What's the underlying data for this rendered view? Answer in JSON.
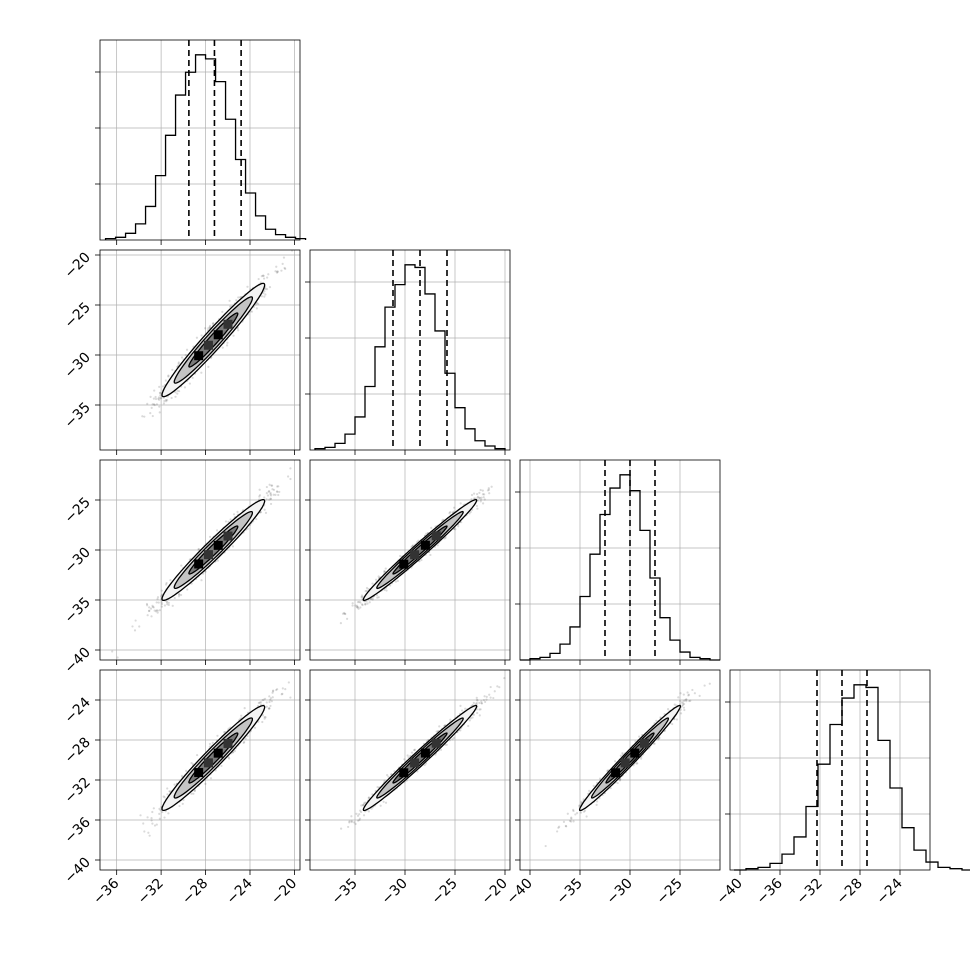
{
  "chart_data": {
    "type": "corner",
    "n_params": 4,
    "colors": {
      "line": "#000000",
      "grid": "#b0b0b0",
      "scatter": "#555555"
    },
    "parameters": [
      {
        "index": 0,
        "range": [
          -37.5,
          -19.5
        ],
        "ticks": [
          -36,
          -32,
          -28,
          -24,
          -20
        ],
        "tick_labels": [
          "−36",
          "−32",
          "−28",
          "−24",
          "−20"
        ]
      },
      {
        "index": 1,
        "range": [
          -39.5,
          -19.5
        ],
        "ticks": [
          -35,
          -30,
          -25,
          -20
        ],
        "tick_labels": [
          "−35",
          "−30",
          "−25",
          "−20"
        ]
      },
      {
        "index": 2,
        "range": [
          -41.0,
          -21.0
        ],
        "ticks": [
          -40,
          -35,
          -30,
          -25
        ],
        "tick_labels": [
          "−40",
          "−35",
          "−30",
          "−25"
        ]
      },
      {
        "index": 3,
        "range": [
          -41.0,
          -21.0
        ],
        "ticks": [
          -40,
          -36,
          -32,
          -28,
          -24
        ],
        "tick_labels": [
          "−40",
          "−36",
          "−32",
          "−28",
          "−24"
        ]
      }
    ],
    "y_axes": {
      "1": {
        "ticks": [
          -20,
          -25,
          -30,
          -35
        ],
        "tick_labels": [
          "−20",
          "−25",
          "−30",
          "−35"
        ]
      },
      "2": {
        "ticks": [
          -25,
          -30,
          -35,
          -40
        ],
        "tick_labels": [
          "−25",
          "−30",
          "−35",
          "−40"
        ]
      },
      "3": {
        "ticks": [
          -24,
          -28,
          -32,
          -36,
          -40
        ],
        "tick_labels": [
          "−24",
          "−28",
          "−32",
          "−36",
          "−40"
        ]
      }
    },
    "histograms": [
      {
        "param": 0,
        "bin_start": -37.0,
        "bin_width": 0.9,
        "counts": [
          1,
          2,
          5,
          12,
          25,
          48,
          78,
          108,
          125,
          138,
          135,
          118,
          90,
          60,
          35,
          18,
          8,
          4,
          2,
          1
        ],
        "quantiles": [
          -29.5,
          -27.2,
          -24.8
        ]
      },
      {
        "param": 1,
        "bin_start": -39.0,
        "bin_width": 1.0,
        "counts": [
          1,
          2,
          5,
          12,
          25,
          48,
          78,
          108,
          125,
          140,
          138,
          118,
          90,
          58,
          32,
          16,
          7,
          3,
          1
        ],
        "quantiles": [
          -31.2,
          -28.5,
          -25.8
        ]
      },
      {
        "param": 2,
        "bin_start": -41.0,
        "bin_width": 1.0,
        "counts": [
          0,
          1,
          2,
          5,
          12,
          25,
          48,
          80,
          110,
          130,
          140,
          128,
          98,
          62,
          32,
          15,
          6,
          2,
          1,
          0
        ],
        "quantiles": [
          -32.5,
          -30.0,
          -27.5
        ]
      },
      {
        "param": 3,
        "bin_start": -40.6,
        "bin_width": 1.2,
        "counts": [
          0,
          1,
          2,
          5,
          12,
          25,
          48,
          80,
          110,
          130,
          140,
          138,
          98,
          62,
          32,
          15,
          6,
          2,
          1,
          0
        ],
        "quantiles": [
          -32.3,
          -29.8,
          -27.3
        ]
      }
    ],
    "pairs": [
      {
        "row": 1,
        "col": 0,
        "mean": [
          -27.3,
          -28.5
        ],
        "sd": [
          2.2,
          2.7
        ],
        "rho": 0.97
      },
      {
        "row": 2,
        "col": 0,
        "mean": [
          -27.3,
          -30.0
        ],
        "sd": [
          2.2,
          2.4
        ],
        "rho": 0.97
      },
      {
        "row": 2,
        "col": 1,
        "mean": [
          -28.5,
          -30.0
        ],
        "sd": [
          2.7,
          2.4
        ],
        "rho": 0.985
      },
      {
        "row": 3,
        "col": 0,
        "mean": [
          -27.3,
          -29.8
        ],
        "sd": [
          2.2,
          2.5
        ],
        "rho": 0.97
      },
      {
        "row": 3,
        "col": 1,
        "mean": [
          -28.5,
          -29.8
        ],
        "sd": [
          2.7,
          2.5
        ],
        "rho": 0.985
      },
      {
        "row": 3,
        "col": 2,
        "mean": [
          -30.0,
          -29.8
        ],
        "sd": [
          2.4,
          2.5
        ],
        "rho": 0.985
      }
    ],
    "contour_levels_sigma": [
      1.0,
      1.6,
      2.1
    ],
    "grid": true,
    "title": "",
    "legend": ""
  }
}
